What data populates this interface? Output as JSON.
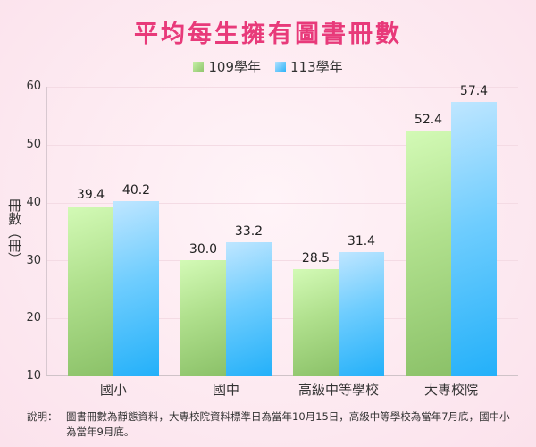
{
  "chart_data": {
    "type": "bar",
    "title": "平均每生擁有圖書冊數",
    "categories": [
      "國小",
      "國中",
      "高級中等學校",
      "大專校院"
    ],
    "series": [
      {
        "name": "109學年",
        "values": [
          39.4,
          30.0,
          28.5,
          52.4
        ],
        "color": "#a6d97f"
      },
      {
        "name": "113學年",
        "values": [
          40.2,
          33.2,
          31.4,
          57.4
        ],
        "color": "#4cc2fb"
      }
    ],
    "value_labels": [
      [
        "39.4",
        "30.0",
        "28.5",
        "52.4"
      ],
      [
        "40.2",
        "33.2",
        "31.4",
        "57.4"
      ]
    ],
    "xlabel": "",
    "ylabel": "冊數（冊）",
    "ylim": [
      10,
      60
    ],
    "yticks": [
      10,
      20,
      30,
      40,
      50,
      60
    ],
    "grid": true,
    "legend_position": "top"
  },
  "title": "平均每生擁有圖書冊數",
  "legend": [
    {
      "label": "109學年",
      "color": "#a6d97f"
    },
    {
      "label": "113學年",
      "color": "#4cc2fb"
    }
  ],
  "axis": {
    "ylabel": "冊數（冊）",
    "yticks": [
      "60",
      "50",
      "40",
      "30",
      "20",
      "10"
    ]
  },
  "categories": [
    "國小",
    "國中",
    "高級中等學校",
    "大專校院"
  ],
  "note": {
    "label": "說明：",
    "text": "圖書冊數為靜態資料，大專校院資料標準日為當年10月15日，高級中等學校為當年7月底，國中小為當年9月底。"
  }
}
